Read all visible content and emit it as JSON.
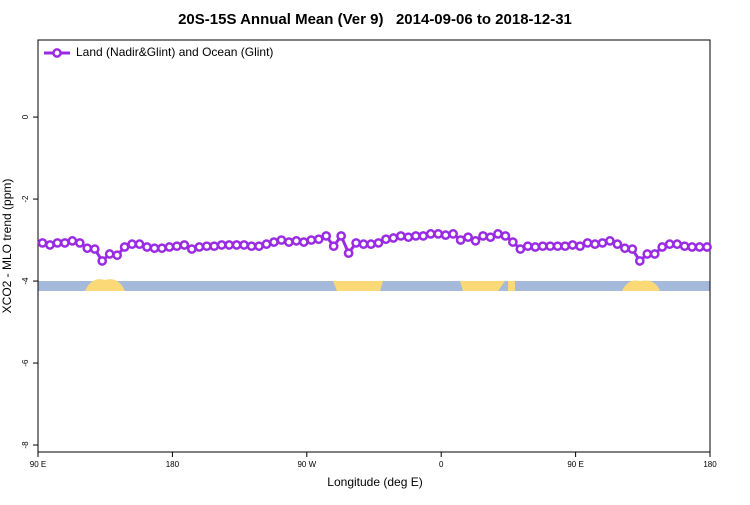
{
  "chart_data": {
    "type": "line",
    "title": "20S-15S Annual Mean (Ver 9)   2014-09-06 to 2018-12-31",
    "x_label": "Longitude (deg E)",
    "y_label": "XCO2 - MLO trend (ppm)",
    "xlim": [
      90,
      540
    ],
    "ylim": [
      -8.17,
      1.88
    ],
    "xticks": [
      {
        "value": 90,
        "label": "90 E"
      },
      180,
      {
        "value": 270,
        "label": "90 W"
      },
      {
        "value": 360,
        "label": "0"
      },
      {
        "value": 450,
        "label": "90 E"
      },
      {
        "value": 540,
        "label": "180"
      }
    ],
    "yticks": [
      -8,
      -6,
      -4,
      -2,
      0
    ],
    "legend": "top-left",
    "x": [
      93,
      98,
      103,
      108,
      113,
      118,
      123,
      128,
      133,
      138,
      143,
      148,
      153,
      158,
      163,
      168,
      173,
      178,
      183,
      188,
      193,
      198,
      203,
      208,
      213,
      218,
      223,
      228,
      233,
      238,
      243,
      248,
      253,
      258,
      263,
      268,
      273,
      278,
      283,
      288,
      293,
      298,
      303,
      308,
      313,
      318,
      323,
      328,
      333,
      338,
      343,
      348,
      353,
      358,
      363,
      368,
      373,
      378,
      383,
      388,
      393,
      398,
      403,
      408,
      413,
      418,
      423,
      428,
      433,
      438,
      443,
      448,
      453,
      458,
      463,
      468,
      473,
      478,
      483,
      488,
      493,
      498,
      503,
      508,
      513,
      518,
      523,
      528,
      533,
      538
    ],
    "series": [
      {
        "name": "Land (Nadir&Glint) and Ocean (Glint)",
        "color": "#9a2be2",
        "values": [
          -3.07,
          -3.12,
          -3.07,
          -3.07,
          -3.02,
          -3.07,
          -3.2,
          -3.22,
          -3.51,
          -3.34,
          -3.37,
          -3.17,
          -3.1,
          -3.1,
          -3.17,
          -3.2,
          -3.2,
          -3.17,
          -3.15,
          -3.12,
          -3.22,
          -3.17,
          -3.15,
          -3.15,
          -3.12,
          -3.12,
          -3.12,
          -3.12,
          -3.15,
          -3.15,
          -3.1,
          -3.05,
          -3.0,
          -3.05,
          -3.02,
          -3.05,
          -3.0,
          -2.98,
          -2.9,
          -3.15,
          -2.9,
          -3.32,
          -3.07,
          -3.1,
          -3.1,
          -3.07,
          -2.98,
          -2.95,
          -2.9,
          -2.93,
          -2.9,
          -2.9,
          -2.85,
          -2.85,
          -2.88,
          -2.85,
          -3.0,
          -2.93,
          -3.02,
          -2.9,
          -2.93,
          -2.85,
          -2.9,
          -3.05,
          -3.22,
          -3.15,
          -3.17,
          -3.15,
          -3.15,
          -3.15,
          -3.15,
          -3.12,
          -3.15,
          -3.07,
          -3.1,
          -3.07,
          -3.02,
          -3.1,
          -3.2,
          -3.22,
          -3.51,
          -3.34,
          -3.34,
          -3.17,
          -3.1,
          -3.1,
          -3.15,
          -3.17,
          -3.17,
          -3.17
        ]
      }
    ]
  }
}
